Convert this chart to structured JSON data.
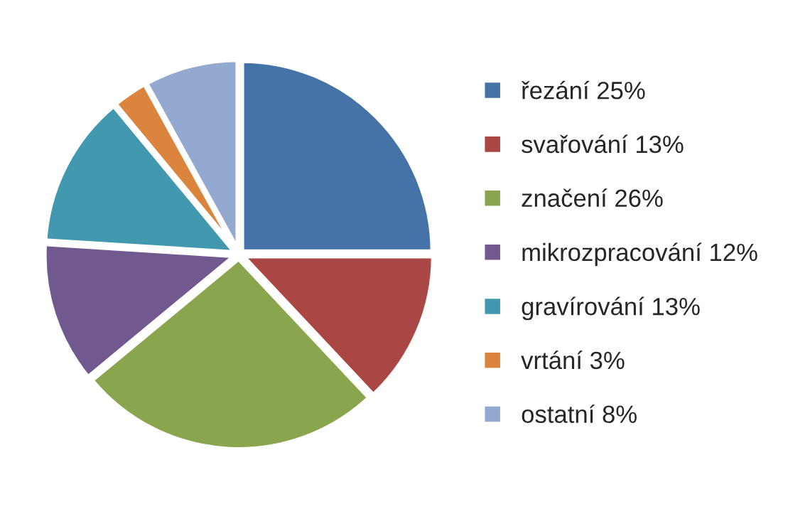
{
  "chart_data": {
    "type": "pie",
    "categories": [
      "řezání 25%",
      "svařování 13%",
      "značení 26%",
      "mikrozpracování 12%",
      "gravírování 13%",
      "vrtání 3%",
      "ostatní 8%"
    ],
    "values": [
      25,
      13,
      26,
      12,
      13,
      3,
      8
    ],
    "colors": [
      "#4572a7",
      "#aa4643",
      "#89a54e",
      "#71588f",
      "#4198af",
      "#db843d",
      "#93a9cf"
    ],
    "legend": "right"
  }
}
